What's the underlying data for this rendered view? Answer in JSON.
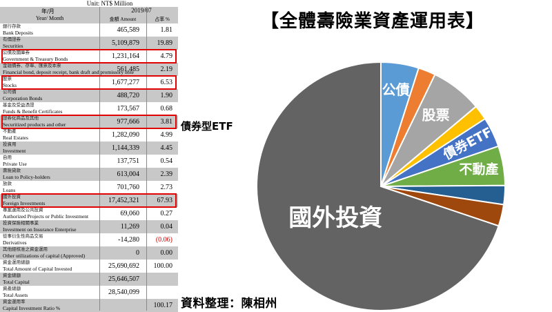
{
  "table": {
    "unit": "Unit: NT$ Million",
    "header": {
      "year_month_zh": "年/月",
      "year_month_en": "Year/ Month",
      "period": "2019/07",
      "amount_col": "金額 Amount",
      "pct_col": "占率 %"
    },
    "rows": [
      {
        "zh": "銀行存款",
        "en": "Bank Deposits",
        "amount": "465,589",
        "pct": "1.81"
      },
      {
        "zh": "有價證券",
        "en": "Securities",
        "amount": "5,109,879",
        "pct": "19.89"
      },
      {
        "zh": "公債及國庫券",
        "en": "Government & Treasury Bonds",
        "amount": "1,231,164",
        "pct": "4.79"
      },
      {
        "zh": "金融債券、存單、匯票及本票",
        "en": "Financial bond, deposit receipt, bank draft and promissory note",
        "amount": "561,485",
        "pct": "2.19"
      },
      {
        "zh": "股票",
        "en": "Stocks",
        "amount": "1,677,277",
        "pct": "6.53"
      },
      {
        "zh": "公司債",
        "en": "Corporation Bonds",
        "amount": "488,720",
        "pct": "1.90"
      },
      {
        "zh": "基金及受益憑證",
        "en": "Funds & Benefit Certificates",
        "amount": "173,567",
        "pct": "0.68"
      },
      {
        "zh": "證券化商品及其他",
        "en": "Securitized products and other",
        "amount": "977,666",
        "pct": "3.81"
      },
      {
        "zh": "不動產",
        "en": "Real Estates",
        "amount": "1,282,090",
        "pct": "4.99"
      },
      {
        "zh": "投資用",
        "en": "Investment",
        "amount": "1,144,339",
        "pct": "4.45"
      },
      {
        "zh": "自用",
        "en": "Private Use",
        "amount": "137,751",
        "pct": "0.54"
      },
      {
        "zh": "壽險貸款",
        "en": "Loan to Policy-holders",
        "amount": "613,004",
        "pct": "2.39"
      },
      {
        "zh": "放款",
        "en": "Loans",
        "amount": "701,760",
        "pct": "2.73"
      },
      {
        "zh": "國外投資",
        "en": "Foreign Investments",
        "amount": "17,452,321",
        "pct": "67.93"
      },
      {
        "zh": "專案運用及公共投資",
        "en": "Authorized Projects or Public Investment",
        "amount": "69,060",
        "pct": "0.27"
      },
      {
        "zh": "投資保險相關事業",
        "en": "Investment on Insurance Enterprise",
        "amount": "11,269",
        "pct": "0.04"
      },
      {
        "zh": "從事衍生性商品交易",
        "en": "Derivatives",
        "amount": "-14,280",
        "pct": "(0.06)"
      },
      {
        "zh": "其他經核准之資金運用",
        "en": "Other utilizations of capital (Approved)",
        "amount": "0",
        "pct": "0.00"
      },
      {
        "zh": "資金運用總額",
        "en": "Total Amount of Capital Invested",
        "amount": "25,690,692",
        "pct": "100.00"
      },
      {
        "zh": "資金總額",
        "en": "Total Capital",
        "amount": "25,646,507",
        "pct": ""
      },
      {
        "zh": "資產總額",
        "en": "Total Assets",
        "amount": "28,540,099",
        "pct": ""
      },
      {
        "zh": "資金運用率",
        "en": "Capital Investment Ratio %",
        "amount": "",
        "pct": "100.17"
      }
    ]
  },
  "annotations": {
    "etf_label": "債券型ETF",
    "credit": "資料整理：陳相州"
  },
  "colors": {
    "highlight_border": "#e00000",
    "table_shade": "#c8c8c8",
    "negative_value": "#d00000"
  },
  "chart_data": {
    "type": "pie",
    "title": "【全體壽險業資產運用表】",
    "slices": [
      {
        "label": "公債",
        "value": 4.79,
        "color": "#5b9bd5"
      },
      {
        "label": "",
        "value": 2.19,
        "color": "#ed7d31"
      },
      {
        "label": "股票",
        "value": 6.53,
        "color": "#a5a5a5"
      },
      {
        "label": "",
        "value": 1.9,
        "color": "#ffc000"
      },
      {
        "label": "債券ETF",
        "value": 3.81,
        "color": "#4472c4"
      },
      {
        "label": "不動產",
        "value": 4.99,
        "color": "#70ad47"
      },
      {
        "label": "",
        "value": 2.39,
        "color": "#255e91"
      },
      {
        "label": "",
        "value": 2.73,
        "color": "#9e480e"
      },
      {
        "label": "國外投資",
        "value": 67.93,
        "color": "#636363"
      }
    ]
  }
}
